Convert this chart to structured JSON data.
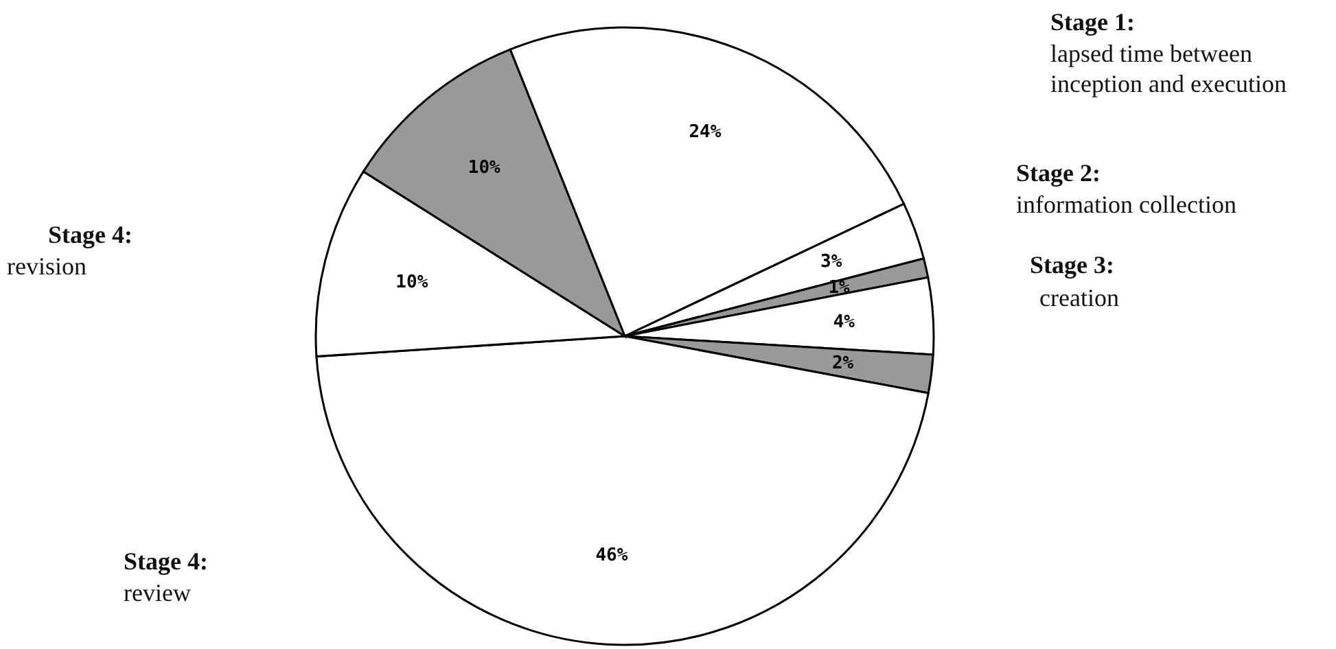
{
  "chart_data": {
    "type": "pie",
    "categories": [
      null,
      null,
      null,
      null,
      null,
      null,
      null,
      null
    ],
    "values": [
      24,
      3,
      1,
      4,
      2,
      46,
      10,
      10
    ],
    "colors": [
      "#ffffff",
      "#ffffff",
      "#999999",
      "#ffffff",
      "#999999",
      "#ffffff",
      "#ffffff",
      "#999999"
    ],
    "value_labels": [
      "24%",
      "3%",
      "1%",
      "4%",
      "2%",
      "46%",
      "10%",
      "10%"
    ],
    "annotations": [
      "Stage 1:",
      "lapsed time between inception and execution",
      "Stage 2:",
      "information collection",
      "Stage 3:",
      "creation",
      "Stage 4:",
      "revision",
      "Stage 4:",
      "review"
    ],
    "legend": false
  }
}
